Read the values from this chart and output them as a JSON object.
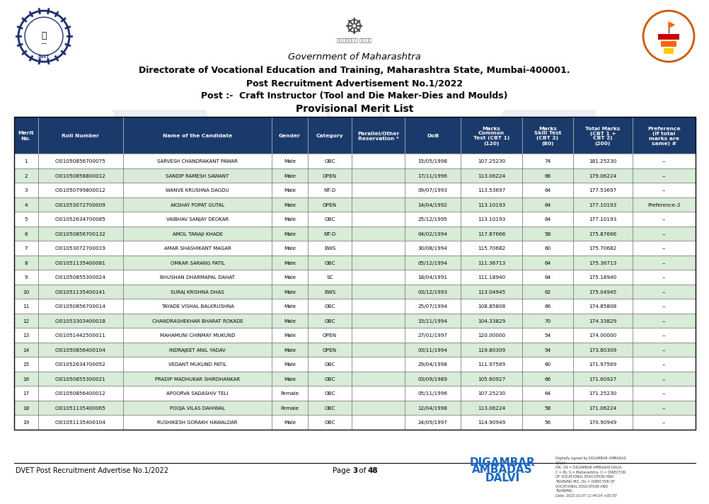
{
  "title_line1": "Government of Maharashtra",
  "title_line2": "Directorate of Vocational Education and Training, Maharashtra State, Mumbai-400001.",
  "title_line3": "Post Recruitment Advertisement No.1/2022",
  "title_line4": "Post :-  Craft Instructor (Tool and Die Maker-Dies and Moulds)",
  "title_line5": "Provisional Merit List",
  "col_headers": [
    "Merit\nNo.",
    "Roll Number",
    "Name of the Candidate",
    "Gender",
    "Category",
    "Parallel/Other\nReservation *",
    "DoB",
    "Marks\nCommon\nTest (CBT 1)\n(120)",
    "Marks\nSkill Test\n(CBT 2)\n(80)",
    "Total Marks\n(CBT 1 +\nCBT 2)\n(200)",
    "Preference\n(If total\nmarks are\nsame) #"
  ],
  "rows": [
    [
      "1",
      "CI01050856700075",
      "SARVESH CHANDRAKANT PAWAR",
      "Male",
      "OBC",
      "",
      "15/05/1998",
      "107.25230",
      "74",
      "181.25230",
      "--"
    ],
    [
      "2",
      "CI01050858800012",
      "SANDIP RAMESH SAWANT",
      "Male",
      "OPEN",
      "",
      "17/11/1996",
      "113.06224",
      "66",
      "179.06224",
      "--"
    ],
    [
      "3",
      "CI01050799800012",
      "WANVE KRUSHNA DAGDU",
      "Male",
      "NT-D",
      "",
      "09/07/1993",
      "113.53697",
      "64",
      "177.53697",
      "--"
    ],
    [
      "4",
      "CI01053072700009",
      "AKSHAY POPAT GUTAL",
      "Male",
      "OPEN",
      "",
      "14/04/1992",
      "113.10193",
      "64",
      "177.10193",
      "Preference-3"
    ],
    [
      "5",
      "CI01052634700085",
      "VAIBHAV SANJAY DEOKAR",
      "Male",
      "OBC",
      "",
      "25/12/1995",
      "113.10193",
      "64",
      "177.10193",
      "--"
    ],
    [
      "6",
      "CI01050856700132",
      "AMOL TANAJI KHADE",
      "Male",
      "NT-D",
      "",
      "04/02/1994",
      "117.87666",
      "58",
      "175.87666",
      "--"
    ],
    [
      "7",
      "CI01053072700019",
      "AMAR SHASHIKANT MAGAR",
      "Male",
      "EWS",
      "",
      "30/08/1994",
      "115.70682",
      "60",
      "175.70682",
      "--"
    ],
    [
      "8",
      "CI01051135400081",
      "OMKAR SARANG PATIL",
      "Male",
      "OBC",
      "",
      "05/12/1994",
      "111.36713",
      "64",
      "175.36713",
      "--"
    ],
    [
      "9",
      "CI01050855300024",
      "BHUSHAN DHARMAPAL DAHAT",
      "Male",
      "SC",
      "",
      "18/04/1991",
      "111.18940",
      "64",
      "175.18940",
      "--"
    ],
    [
      "10",
      "CI01051135400141",
      "SURAJ KRISHNA DHAS",
      "Male",
      "EWS",
      "",
      "03/12/1993",
      "113.04945",
      "62",
      "175.04945",
      "--"
    ],
    [
      "11",
      "CI01050856700014",
      "TAYADE VISHAL BALKRUSHNA",
      "Male",
      "OBC",
      "",
      "25/07/1994",
      "108.85808",
      "66",
      "174.85808",
      "--"
    ],
    [
      "12",
      "CI01053303400018",
      "CHANDRASHEKHAR BHARAT ROKADE",
      "Male",
      "OBC",
      "",
      "15/11/1994",
      "104.33829",
      "70",
      "174.33829",
      "--"
    ],
    [
      "13",
      "CI01051442500011",
      "MAHAMUNI CHINMAY MUKUND",
      "Male",
      "OPEN",
      "",
      "27/01/1997",
      "120.00000",
      "54",
      "174.00000",
      "--"
    ],
    [
      "14",
      "CI01050856400104",
      "INDRAJEET ANIL YADAV",
      "Male",
      "OPEN",
      "",
      "03/11/1994",
      "119.80309",
      "54",
      "173.80309",
      "--"
    ],
    [
      "15",
      "CI01052634700052",
      "VEDANT MUKUND PATIL",
      "Male",
      "OBC",
      "",
      "29/04/1998",
      "111.97569",
      "60",
      "171.97569",
      "--"
    ],
    [
      "16",
      "CI01050855300021",
      "PRADIP MADHUKAR SHIRDHANKAR",
      "Male",
      "OBC",
      "",
      "03/09/1989",
      "105.60927",
      "66",
      "171.60927",
      "--"
    ],
    [
      "17",
      "CI01050856400012",
      "APOORVA SADASHIV TELI",
      "Female",
      "OBC",
      "",
      "05/11/1996",
      "107.25230",
      "64",
      "171.25230",
      "--"
    ],
    [
      "18",
      "CI01051135400065",
      "POOJA VILAS DAHIWAL",
      "Female",
      "OBC",
      "",
      "12/04/1998",
      "113.06224",
      "58",
      "171.06224",
      "--"
    ],
    [
      "19",
      "CI01051135400104",
      "RUSHIKESH GORAKH HAWALDAR",
      "Male",
      "OBC",
      "",
      "24/09/1997",
      "114.90949",
      "56",
      "170.90949",
      "--"
    ]
  ],
  "footer_left": "DVET Post Recruitment Advertise No.1/2022",
  "footer_center": "Page 3 of 48",
  "footer_right1": "DIGAMBAR",
  "footer_right2": "AMBADAS",
  "footer_right3": "DALVI",
  "header_bg": "#1a3a6b",
  "header_text_color": "#ffffff",
  "row_odd": "#ffffff",
  "row_even": "#d8ecd8",
  "border_color": "#777777",
  "watermark_color": "#c5d5e5",
  "bg_color": "#ffffff",
  "sig_text": "Digitally signed by DIGAMBAR AMBADAS\nDALVI\nDN: CN = DIGAMBAR AMBADAS DALVI,\nC = IN, S = Maharashtra, O = DIRECTOR\nOF VOCATIONAL EDUCATION AND\nTRAINING MG, OU = DIRECTOR OF\nVOCATIONAL EDUCATION AND\nTRAINING\nDate: 2023.10.07 11:44:24 +05'30'"
}
